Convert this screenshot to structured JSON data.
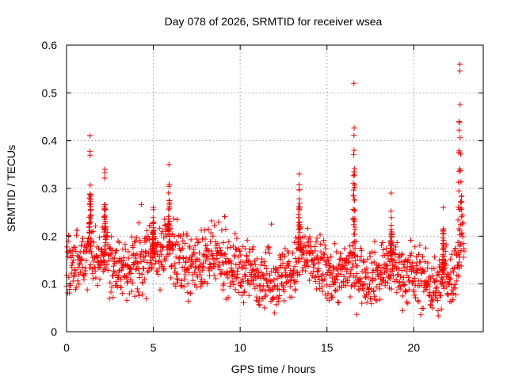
{
  "chart_data": {
    "type": "scatter",
    "title": "Day 078 of 2026, SRMTID for receiver wsea",
    "xlabel": "GPS time / hours",
    "ylabel": "SRMTID / TECUs",
    "xlim": [
      0,
      24
    ],
    "ylim": [
      0,
      0.6
    ],
    "x_ticks": [
      0,
      5,
      10,
      15,
      20
    ],
    "x_tick_labels": [
      "0",
      "5",
      "10",
      "15",
      "20"
    ],
    "y_ticks": [
      0,
      0.1,
      0.2,
      0.3,
      0.4,
      0.5,
      0.6
    ],
    "y_tick_labels": [
      "0",
      "0.1",
      "0.2",
      "0.3",
      "0.4",
      "0.5",
      "0.6"
    ],
    "grid": true,
    "marker": "+",
    "series_color": "#ff0000",
    "series": [
      {
        "name": "SRMTID",
        "trend_x": [
          0,
          0.5,
          1.0,
          1.3,
          1.6,
          2.0,
          2.3,
          3.0,
          4.0,
          5.0,
          5.5,
          5.9,
          6.5,
          7.0,
          8.0,
          9.0,
          10.0,
          11.0,
          12.0,
          13.0,
          13.5,
          14.0,
          15.0,
          16.0,
          16.5,
          17.0,
          18.0,
          18.7,
          19.5,
          20.5,
          21.0,
          21.4,
          21.8,
          22.2,
          22.6,
          22.9
        ],
        "trend_y": [
          0.12,
          0.14,
          0.16,
          0.18,
          0.15,
          0.16,
          0.16,
          0.13,
          0.14,
          0.16,
          0.17,
          0.18,
          0.15,
          0.14,
          0.15,
          0.15,
          0.13,
          0.12,
          0.11,
          0.12,
          0.16,
          0.15,
          0.12,
          0.12,
          0.14,
          0.12,
          0.12,
          0.14,
          0.12,
          0.11,
          0.1,
          0.09,
          0.12,
          0.11,
          0.16,
          0.22
        ],
        "spikes": [
          {
            "center": 1.35,
            "width": 0.12,
            "peak": 0.41
          },
          {
            "center": 2.2,
            "width": 0.12,
            "peak": 0.34
          },
          {
            "center": 5.9,
            "width": 0.12,
            "peak": 0.35
          },
          {
            "center": 5.0,
            "width": 0.1,
            "peak": 0.26
          },
          {
            "center": 13.4,
            "width": 0.15,
            "peak": 0.33
          },
          {
            "center": 16.55,
            "width": 0.12,
            "peak": 0.52
          },
          {
            "center": 18.7,
            "width": 0.1,
            "peak": 0.29
          },
          {
            "center": 21.7,
            "width": 0.1,
            "peak": 0.26
          },
          {
            "center": 22.65,
            "width": 0.22,
            "peak": 0.56
          }
        ],
        "x_range": [
          0,
          22.9
        ],
        "point_count": 1400,
        "spread": 0.03,
        "floor": 0.03
      }
    ]
  }
}
